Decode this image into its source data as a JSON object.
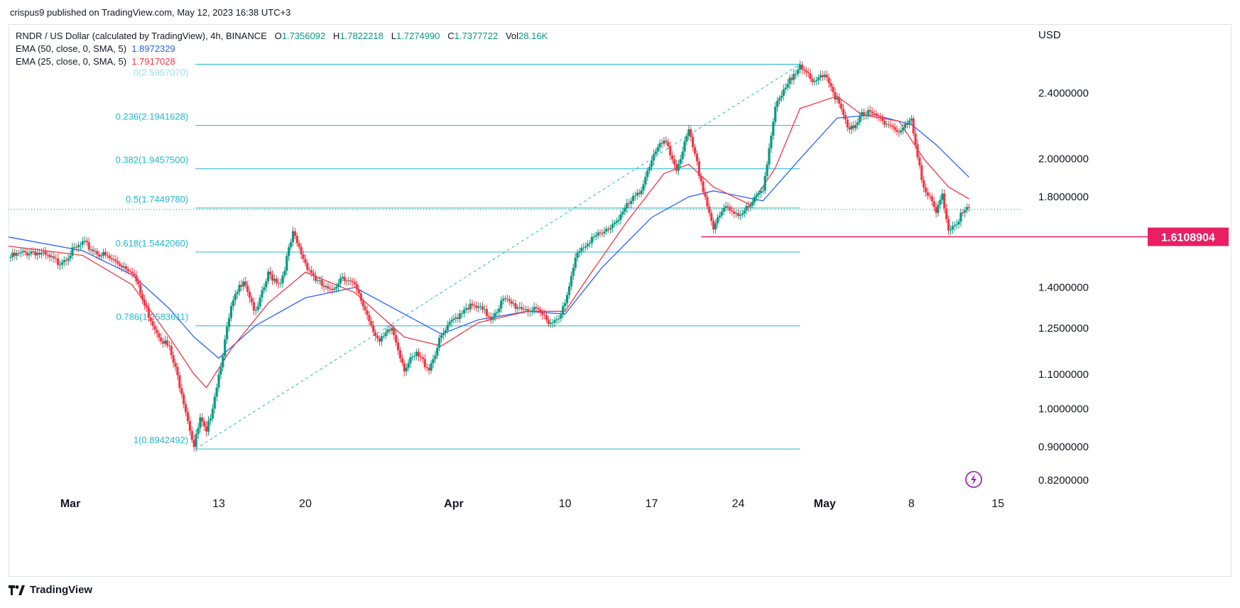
{
  "header": {
    "published": "crispus9 published on TradingView.com, May 12, 2023 16:38 UTC+3"
  },
  "legend": {
    "symbol": "RNDR / US Dollar (calculated by TradingView), 4h, BINANCE",
    "open_label": "O",
    "open": "1.7356092",
    "high_label": "H",
    "high": "1.7822218",
    "low_label": "L",
    "low": "1.7274990",
    "close_label": "C",
    "close": "1.7377722",
    "vol_label": "Vol",
    "vol": "28.16K",
    "ema50_label": "EMA (50, close, 0, SMA, 5)",
    "ema50_value": "1.8972329",
    "ema25_label": "EMA (25, close, 0, SMA, 5)",
    "ema25_value": "1.7917028"
  },
  "footer": {
    "brand": "TradingView"
  },
  "colors": {
    "up": "#089981",
    "down": "#f23645",
    "ema50": "#2962ff",
    "ema25": "#f23645",
    "fib": "#22b8cf",
    "support": "#e91e63"
  },
  "chart_data": {
    "type": "candlestick",
    "currency_label": "USD",
    "y_scale": "log",
    "ylim": [
      0.79,
      2.75
    ],
    "y_ticks": [
      {
        "v": 2.4,
        "label": "2.4000000"
      },
      {
        "v": 2.0,
        "label": "2.0000000"
      },
      {
        "v": 1.8,
        "label": "1.8000000"
      },
      {
        "v": 1.4,
        "label": "1.4000000"
      },
      {
        "v": 1.25,
        "label": "1.2500000"
      },
      {
        "v": 1.1,
        "label": "1.1000000"
      },
      {
        "v": 1.0,
        "label": "1.0000000"
      },
      {
        "v": 0.9,
        "label": "0.9000000"
      },
      {
        "v": 0.82,
        "label": "0.8200000"
      }
    ],
    "x_ticks": [
      {
        "label": "Mar",
        "date": "2023-03-01",
        "bold": true
      },
      {
        "label": "13",
        "date": "2023-03-13",
        "bold": false
      },
      {
        "label": "20",
        "date": "2023-03-20",
        "bold": false
      },
      {
        "label": "Apr",
        "date": "2023-04-01",
        "bold": true
      },
      {
        "label": "10",
        "date": "2023-04-10",
        "bold": false
      },
      {
        "label": "17",
        "date": "2023-04-17",
        "bold": false
      },
      {
        "label": "24",
        "date": "2023-04-24",
        "bold": false
      },
      {
        "label": "May",
        "date": "2023-05-01",
        "bold": true
      },
      {
        "label": "8",
        "date": "2023-05-08",
        "bold": false
      },
      {
        "label": "15",
        "date": "2023-05-15",
        "bold": false
      }
    ],
    "xlim_dates": [
      "2023-02-24",
      "2023-05-17"
    ],
    "price_path": [
      [
        "2023-02-24",
        1.52
      ],
      [
        "2023-02-26",
        1.55
      ],
      [
        "2023-02-28",
        1.5
      ],
      [
        "2023-03-02",
        1.58
      ],
      [
        "2023-03-04",
        1.52
      ],
      [
        "2023-03-06",
        1.47
      ],
      [
        "2023-03-07",
        1.33
      ],
      [
        "2023-03-08",
        1.24
      ],
      [
        "2023-03-09",
        1.18
      ],
      [
        "2023-03-10",
        1.05
      ],
      [
        "2023-03-11",
        0.9
      ],
      [
        "2023-03-11T12",
        0.97
      ],
      [
        "2023-03-12",
        0.93
      ],
      [
        "2023-03-13",
        1.1
      ],
      [
        "2023-03-14",
        1.32
      ],
      [
        "2023-03-15",
        1.44
      ],
      [
        "2023-03-16",
        1.3
      ],
      [
        "2023-03-17",
        1.45
      ],
      [
        "2023-03-18",
        1.42
      ],
      [
        "2023-03-19",
        1.62
      ],
      [
        "2023-03-20",
        1.5
      ],
      [
        "2023-03-21",
        1.42
      ],
      [
        "2023-03-22",
        1.38
      ],
      [
        "2023-03-23",
        1.45
      ],
      [
        "2023-03-24",
        1.4
      ],
      [
        "2023-03-25",
        1.3
      ],
      [
        "2023-03-26",
        1.2
      ],
      [
        "2023-03-27",
        1.25
      ],
      [
        "2023-03-28",
        1.12
      ],
      [
        "2023-03-29",
        1.16
      ],
      [
        "2023-03-30",
        1.12
      ],
      [
        "2023-03-31",
        1.22
      ],
      [
        "2023-04-01",
        1.28
      ],
      [
        "2023-04-02",
        1.33
      ],
      [
        "2023-04-03",
        1.32
      ],
      [
        "2023-04-04",
        1.29
      ],
      [
        "2023-04-05",
        1.35
      ],
      [
        "2023-04-06",
        1.33
      ],
      [
        "2023-04-07",
        1.32
      ],
      [
        "2023-04-08",
        1.3
      ],
      [
        "2023-04-09",
        1.27
      ],
      [
        "2023-04-10",
        1.33
      ],
      [
        "2023-04-11",
        1.55
      ],
      [
        "2023-04-12",
        1.6
      ],
      [
        "2023-04-13",
        1.62
      ],
      [
        "2023-04-14",
        1.68
      ],
      [
        "2023-04-15",
        1.75
      ],
      [
        "2023-04-16",
        1.82
      ],
      [
        "2023-04-17",
        2.0
      ],
      [
        "2023-04-18",
        2.1
      ],
      [
        "2023-04-19",
        1.95
      ],
      [
        "2023-04-20",
        2.15
      ],
      [
        "2023-04-21",
        1.88
      ],
      [
        "2023-04-22",
        1.65
      ],
      [
        "2023-04-23",
        1.75
      ],
      [
        "2023-04-24",
        1.72
      ],
      [
        "2023-04-25",
        1.75
      ],
      [
        "2023-04-26",
        1.85
      ],
      [
        "2023-04-27",
        2.3
      ],
      [
        "2023-04-28",
        2.45
      ],
      [
        "2023-04-29",
        2.62
      ],
      [
        "2023-04-30",
        2.45
      ],
      [
        "2023-05-01",
        2.55
      ],
      [
        "2023-05-02",
        2.35
      ],
      [
        "2023-05-03",
        2.15
      ],
      [
        "2023-05-04",
        2.28
      ],
      [
        "2023-05-05",
        2.25
      ],
      [
        "2023-05-06",
        2.22
      ],
      [
        "2023-05-07",
        2.15
      ],
      [
        "2023-05-08",
        2.22
      ],
      [
        "2023-05-09",
        1.85
      ],
      [
        "2023-05-10",
        1.72
      ],
      [
        "2023-05-10T12",
        1.8
      ],
      [
        "2023-05-11",
        1.65
      ],
      [
        "2023-05-12T16",
        1.74
      ]
    ],
    "ema50_path": [
      [
        "2023-02-24",
        1.61
      ],
      [
        "2023-03-02",
        1.55
      ],
      [
        "2023-03-06",
        1.45
      ],
      [
        "2023-03-09",
        1.32
      ],
      [
        "2023-03-11",
        1.22
      ],
      [
        "2023-03-13",
        1.15
      ],
      [
        "2023-03-16",
        1.26
      ],
      [
        "2023-03-20",
        1.36
      ],
      [
        "2023-03-24",
        1.4
      ],
      [
        "2023-03-28",
        1.3
      ],
      [
        "2023-03-31",
        1.23
      ],
      [
        "2023-04-03",
        1.28
      ],
      [
        "2023-04-07",
        1.31
      ],
      [
        "2023-04-10",
        1.3
      ],
      [
        "2023-04-13",
        1.48
      ],
      [
        "2023-04-17",
        1.7
      ],
      [
        "2023-04-20",
        1.8
      ],
      [
        "2023-04-22",
        1.83
      ],
      [
        "2023-04-26",
        1.78
      ],
      [
        "2023-04-29",
        2.0
      ],
      [
        "2023-05-02",
        2.24
      ],
      [
        "2023-05-05",
        2.26
      ],
      [
        "2023-05-08",
        2.2
      ],
      [
        "2023-05-10",
        2.08
      ],
      [
        "2023-05-12T16",
        1.9
      ]
    ],
    "ema25_path": [
      [
        "2023-02-24",
        1.57
      ],
      [
        "2023-03-02",
        1.53
      ],
      [
        "2023-03-06",
        1.41
      ],
      [
        "2023-03-09",
        1.22
      ],
      [
        "2023-03-11",
        1.1
      ],
      [
        "2023-03-12",
        1.06
      ],
      [
        "2023-03-14",
        1.18
      ],
      [
        "2023-03-17",
        1.34
      ],
      [
        "2023-03-20",
        1.46
      ],
      [
        "2023-03-24",
        1.38
      ],
      [
        "2023-03-28",
        1.22
      ],
      [
        "2023-03-31",
        1.19
      ],
      [
        "2023-04-03",
        1.27
      ],
      [
        "2023-04-07",
        1.31
      ],
      [
        "2023-04-10",
        1.31
      ],
      [
        "2023-04-12",
        1.45
      ],
      [
        "2023-04-15",
        1.68
      ],
      [
        "2023-04-18",
        1.92
      ],
      [
        "2023-04-20",
        1.97
      ],
      [
        "2023-04-22",
        1.85
      ],
      [
        "2023-04-25",
        1.76
      ],
      [
        "2023-04-27",
        1.95
      ],
      [
        "2023-04-29",
        2.3
      ],
      [
        "2023-05-02",
        2.38
      ],
      [
        "2023-05-04",
        2.26
      ],
      [
        "2023-05-07",
        2.22
      ],
      [
        "2023-05-09",
        2.0
      ],
      [
        "2023-05-11",
        1.85
      ],
      [
        "2023-05-12T16",
        1.79
      ]
    ],
    "fibonacci": {
      "start_date": "2023-03-11",
      "end_date": "2023-04-29",
      "anchor_low": 0.8942492,
      "anchor_high": 2.6,
      "levels": [
        {
          "label": "0.236(2.1941628)",
          "value": 2.1941628
        },
        {
          "label": "0.382(1.9457500)",
          "value": 1.94575
        },
        {
          "label": "0.5(1.7449780)",
          "value": 1.744978
        },
        {
          "label": "0.618(1.5442060)",
          "value": 1.544206
        },
        {
          "label": "0.786(1.2583611)",
          "value": 1.2583611
        },
        {
          "label": "1(0.8942492)",
          "value": 0.8942492
        }
      ],
      "top_label": "0(2.5957070)"
    },
    "last_price_line": 1.7377722,
    "support_line": {
      "value": 1.6108904,
      "label": "1.6108904",
      "start_date": "2023-04-21"
    }
  }
}
